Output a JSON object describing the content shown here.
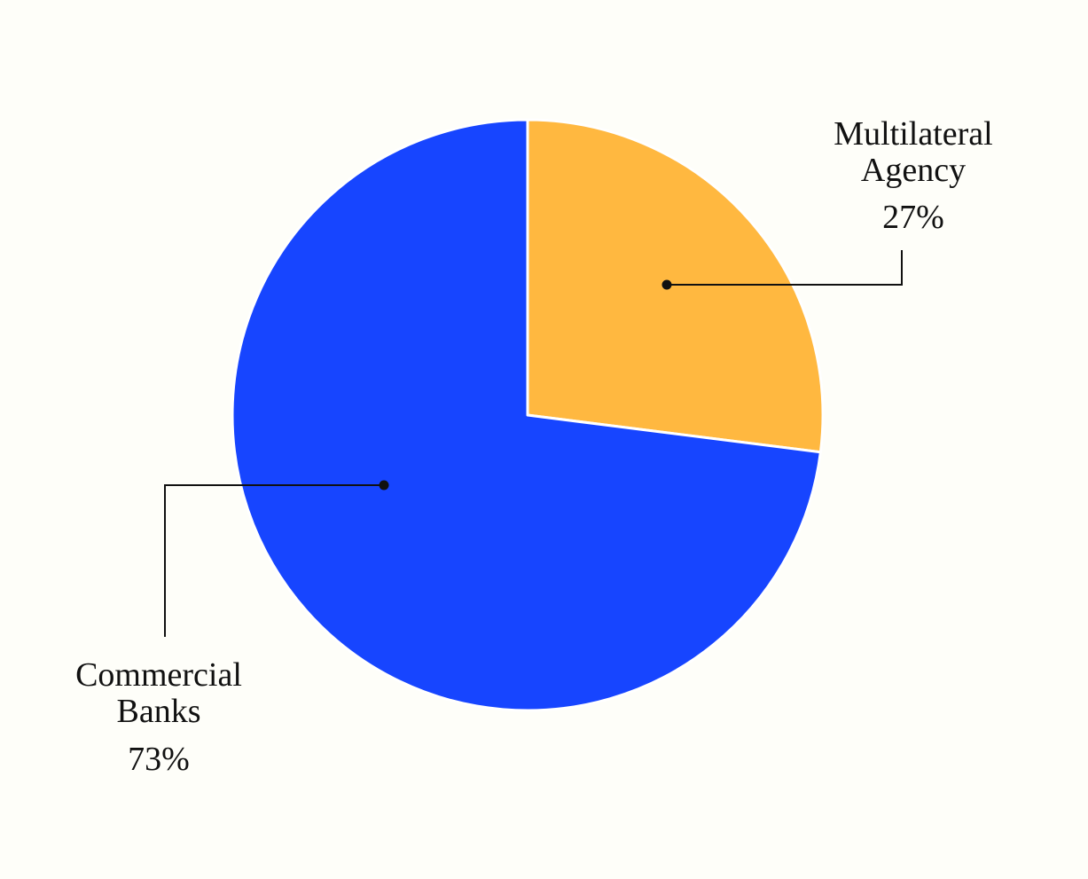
{
  "chart_data": {
    "type": "pie",
    "title": "",
    "slices": [
      {
        "label_lines": [
          "Multilateral",
          "Agency"
        ],
        "value": 27,
        "percent_label": "27%",
        "color": "#ffb840"
      },
      {
        "label_lines": [
          "Commercial",
          "Banks"
        ],
        "value": 73,
        "percent_label": "73%",
        "color": "#1745ff"
      }
    ],
    "start_angle_deg": 0,
    "direction": "clockwise",
    "slice_border_color": "#ffffff",
    "leader_color": "#111111",
    "background": "#fefef9"
  }
}
